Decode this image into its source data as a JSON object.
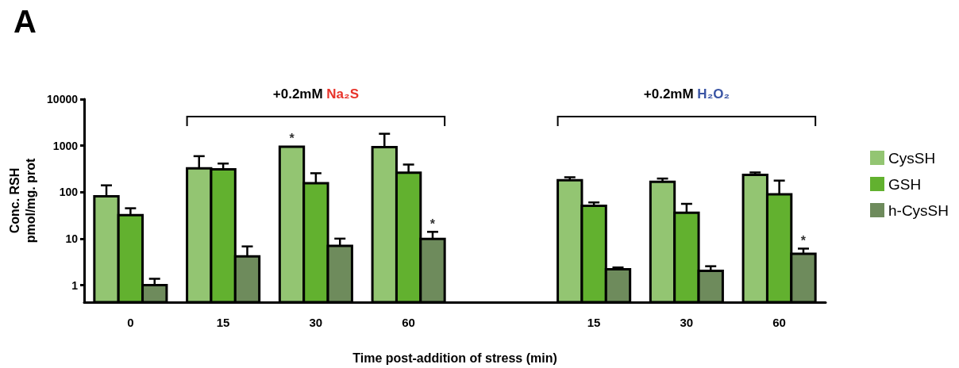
{
  "chart_data": {
    "type": "bar",
    "title": "A",
    "xlabel": "Time post-addition of stress (min)",
    "ylabel": "Conc. RSH\npmol/mg. prot",
    "categories": [
      "0",
      "15",
      "30",
      "60",
      null,
      "15",
      "30",
      "60"
    ],
    "series": [
      {
        "name": "CysSH",
        "color": "#93c572",
        "values": [
          81,
          326,
          950,
          925,
          null,
          181,
          166,
          235
        ],
        "errors": [
          [
            81,
            140
          ],
          [
            326,
            594
          ],
          null,
          [
            925,
            1800
          ],
          null,
          [
            181,
            209
          ],
          [
            166,
            196
          ],
          [
            235,
            265
          ]
        ],
        "value_labels": [
          null,
          null,
          "*",
          null,
          null,
          null,
          null,
          null
        ]
      },
      {
        "name": "GSH",
        "color": "#62b12f",
        "values": [
          32,
          310,
          155,
          262,
          null,
          51,
          36,
          90
        ],
        "errors": [
          [
            32,
            45
          ],
          [
            310,
            412
          ],
          [
            155,
            255
          ],
          [
            262,
            392
          ],
          null,
          [
            51,
            60
          ],
          [
            36,
            56
          ],
          [
            90,
            177
          ]
        ]
      },
      {
        "name": "h-CysSH",
        "color": "#6e8b5c",
        "values": [
          1.0,
          4.15,
          7.0,
          9.9,
          null,
          2.19,
          2.02,
          4.72
        ],
        "errors": [
          [
            1.0,
            1.37
          ],
          [
            4.15,
            6.8
          ],
          [
            7.0,
            10
          ],
          [
            9.9,
            14
          ],
          null,
          [
            2.19,
            2.4
          ],
          [
            2.02,
            2.55
          ],
          [
            4.72,
            6.1
          ]
        ],
        "value_labels": [
          null,
          null,
          null,
          "*",
          null,
          null,
          null,
          "*"
        ]
      }
    ],
    "annotations": [
      "+0.2mM Na₂S",
      "+0.2mM H₂O₂"
    ],
    "log": "y",
    "ylim": [
      0.43,
      10000
    ],
    "yticks": [
      1,
      10,
      100,
      1000,
      10000
    ],
    "grid": false,
    "legend": "right"
  }
}
